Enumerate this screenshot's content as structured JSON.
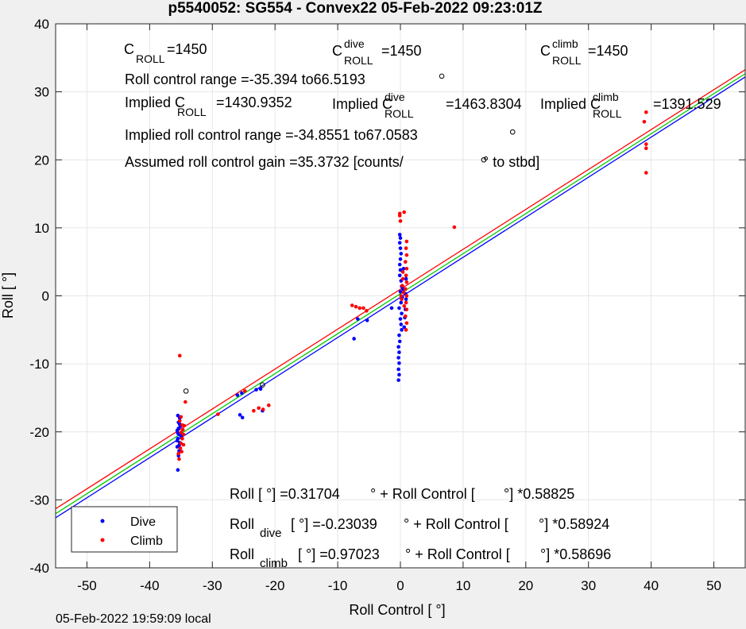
{
  "chart_data": {
    "type": "scatter",
    "title": "p5540052: SG554 - Convex22 05-Feb-2022 09:23:01Z",
    "xlabel": "Roll Control [ °]",
    "ylabel": "Roll [ °]",
    "xlim": [
      -55,
      55
    ],
    "ylim": [
      -40,
      40
    ],
    "xticks": [
      -50,
      -40,
      -30,
      -20,
      -10,
      0,
      10,
      20,
      30,
      40,
      50
    ],
    "yticks": [
      -40,
      -30,
      -20,
      -10,
      0,
      10,
      20,
      30,
      40
    ],
    "grid": true,
    "legend": {
      "location": "bottom-left",
      "entries": [
        "Dive",
        "Climb"
      ]
    },
    "colors": {
      "dive": "#0000ff",
      "climb": "#ff0000",
      "fit_all": "#00cc00",
      "fit_dive": "#0000ff",
      "fit_climb": "#ff0000"
    },
    "fit_lines": [
      {
        "name": "all",
        "intercept": 0.31704,
        "slope": 0.58825,
        "color": "#00cc00"
      },
      {
        "name": "dive",
        "intercept": -0.23039,
        "slope": 0.58924,
        "color": "#0000ff"
      },
      {
        "name": "climb",
        "intercept": 0.97023,
        "slope": 0.58696,
        "color": "#ff0000"
      }
    ],
    "series": [
      {
        "name": "Dive",
        "color": "#0000ff",
        "points": [
          [
            -35.5,
            -25.6
          ],
          [
            -35.4,
            -23.5
          ],
          [
            -35.3,
            -22.8
          ],
          [
            -35.6,
            -22.2
          ],
          [
            -35.2,
            -21.6
          ],
          [
            -35.5,
            -21.0
          ],
          [
            -35.3,
            -20.4
          ],
          [
            -35.6,
            -19.8
          ],
          [
            -35.1,
            -19.2
          ],
          [
            -35.4,
            -18.6
          ],
          [
            -35.2,
            -18.0
          ],
          [
            -35.5,
            -17.6
          ],
          [
            -35.3,
            -22.0
          ],
          [
            -35.6,
            -21.3
          ],
          [
            -35.0,
            -20.6
          ],
          [
            -35.4,
            -19.5
          ],
          [
            -35.2,
            -18.9
          ],
          [
            -35.5,
            -20.2
          ],
          [
            -26.0,
            -14.6
          ],
          [
            -25.3,
            -14.3
          ],
          [
            -25.6,
            -17.5
          ],
          [
            -25.2,
            -17.9
          ],
          [
            -23.0,
            -13.8
          ],
          [
            -22.3,
            -13.7
          ],
          [
            -22.0,
            -16.9
          ],
          [
            -7.4,
            -6.3
          ],
          [
            -6.8,
            -3.4
          ],
          [
            -5.3,
            -3.6
          ],
          [
            -1.4,
            -1.8
          ],
          [
            -0.3,
            -12.4
          ],
          [
            -0.2,
            -11.6
          ],
          [
            -0.3,
            -10.8
          ],
          [
            -0.2,
            -9.9
          ],
          [
            -0.3,
            -9.1
          ],
          [
            -0.2,
            -8.3
          ],
          [
            -0.3,
            -7.5
          ],
          [
            -0.1,
            -6.7
          ],
          [
            -0.2,
            -5.8
          ],
          [
            0.2,
            -5.0
          ],
          [
            0.1,
            -4.2
          ],
          [
            0.0,
            -3.4
          ],
          [
            0.2,
            -2.6
          ],
          [
            -0.2,
            -1.8
          ],
          [
            0.1,
            -1.0
          ],
          [
            0.3,
            -0.2
          ],
          [
            0.0,
            0.6
          ],
          [
            0.2,
            1.4
          ],
          [
            0.1,
            2.2
          ],
          [
            -0.1,
            3.0
          ],
          [
            0.0,
            3.8
          ],
          [
            -0.1,
            4.6
          ],
          [
            0.0,
            5.4
          ],
          [
            0.1,
            6.2
          ],
          [
            0.0,
            7.0
          ],
          [
            -0.1,
            7.8
          ],
          [
            0.0,
            8.5
          ],
          [
            -0.1,
            9.0
          ],
          [
            0.6,
            -4.6
          ],
          [
            0.8,
            -2.0
          ],
          [
            0.9,
            -0.5
          ],
          [
            0.4,
            1.0
          ],
          [
            0.9,
            2.5
          ],
          [
            0.7,
            -3.2
          ],
          [
            0.5,
            4.0
          ],
          [
            0.8,
            0.3
          ]
        ]
      },
      {
        "name": "Climb",
        "color": "#ff0000",
        "points": [
          [
            -35.2,
            -8.8
          ],
          [
            -35.3,
            -24.0
          ],
          [
            -35.4,
            -23.2
          ],
          [
            -35.1,
            -22.4
          ],
          [
            -35.0,
            -21.7
          ],
          [
            -34.8,
            -21.0
          ],
          [
            -34.6,
            -20.4
          ],
          [
            -34.7,
            -19.7
          ],
          [
            -34.5,
            -19.1
          ],
          [
            -35.2,
            -18.4
          ],
          [
            -35.0,
            -17.8
          ],
          [
            -34.9,
            -22.9
          ],
          [
            -34.6,
            -21.9
          ],
          [
            -35.0,
            -20.1
          ],
          [
            -34.8,
            -19.0
          ],
          [
            -34.3,
            -15.6
          ],
          [
            -29.1,
            -17.4
          ],
          [
            -24.8,
            -14.0
          ],
          [
            -23.4,
            -16.9
          ],
          [
            -22.6,
            -16.5
          ],
          [
            -21.9,
            -16.7
          ],
          [
            -21.0,
            -16.1
          ],
          [
            -7.7,
            -1.4
          ],
          [
            -7.1,
            -1.6
          ],
          [
            -6.5,
            -1.8
          ],
          [
            -5.9,
            -1.8
          ],
          [
            -5.4,
            -2.2
          ],
          [
            -0.1,
            11.8
          ],
          [
            -0.1,
            12.1
          ],
          [
            0.6,
            12.3
          ],
          [
            0.0,
            11.0
          ],
          [
            1.0,
            8.0
          ],
          [
            0.9,
            7.0
          ],
          [
            1.0,
            6.0
          ],
          [
            0.8,
            5.0
          ],
          [
            1.0,
            4.0
          ],
          [
            0.9,
            3.0
          ],
          [
            1.0,
            2.0
          ],
          [
            0.8,
            1.0
          ],
          [
            1.0,
            0.0
          ],
          [
            0.9,
            -1.0
          ],
          [
            1.0,
            -2.0
          ],
          [
            0.8,
            -3.0
          ],
          [
            1.0,
            -4.0
          ],
          [
            0.9,
            -5.0
          ],
          [
            0.5,
            0.5
          ],
          [
            0.3,
            1.5
          ],
          [
            0.4,
            2.5
          ],
          [
            0.2,
            -0.5
          ],
          [
            0.6,
            -1.5
          ],
          [
            0.4,
            3.5
          ],
          [
            0.1,
            0.0
          ],
          [
            8.6,
            10.1
          ],
          [
            39.2,
            27.0
          ],
          [
            38.9,
            25.6
          ],
          [
            39.2,
            22.3
          ],
          [
            39.2,
            21.7
          ],
          [
            39.2,
            18.1
          ]
        ]
      }
    ],
    "outline_markers": [
      [
        6.6,
        32.3
      ],
      [
        17.9,
        24.1
      ],
      [
        13.3,
        20.0
      ],
      [
        -22.0,
        -13.1
      ],
      [
        -34.2,
        -14.0
      ]
    ],
    "annotations": [
      {
        "id": "c_roll",
        "base": "C",
        "sub": "ROLL",
        "rest": "=1450"
      },
      {
        "id": "c_dive",
        "base": "C",
        "sup": "dive",
        "sub": "ROLL",
        "rest": "=1450"
      },
      {
        "id": "c_climb",
        "base": "C",
        "sup": "climb",
        "sub": "ROLL",
        "rest": "=1450"
      },
      {
        "id": "range",
        "text": "Roll control range =-35.394 to66.5193"
      },
      {
        "id": "implied1",
        "base": "Implied C",
        "sub": "ROLL",
        "rest": "=1430.9352"
      },
      {
        "id": "implied2",
        "base": "Implied C",
        "sup": "dive",
        "sub": "ROLL",
        "rest": "=1463.8304"
      },
      {
        "id": "implied3",
        "base": "Implied C",
        "sup": "climb",
        "sub": "ROLL",
        "rest": "=1391.529"
      },
      {
        "id": "implied_range",
        "text": "Implied roll control range =-34.8551 to67.0583"
      },
      {
        "id": "gain_a",
        "text": "Assumed roll control gain =35.3732 [counts/"
      },
      {
        "id": "gain_b",
        "text": "° to stbd]"
      },
      {
        "id": "eq_all",
        "parts": [
          "Roll [ °] =0.31704",
          "° + Roll Control [",
          "°] *0.58825"
        ]
      },
      {
        "id": "eq_dive",
        "base": "Roll",
        "sub": "dive",
        "parts": [
          "[ °] =-0.23039",
          "° + Roll Control [",
          "°] *0.58924"
        ]
      },
      {
        "id": "eq_climb",
        "base": "Roll",
        "sub": "climb",
        "parts": [
          "[ °] =0.97023",
          "° + Roll Control [",
          "°] *0.58696"
        ]
      }
    ]
  },
  "footer": "05-Feb-2022 19:59:09 local"
}
